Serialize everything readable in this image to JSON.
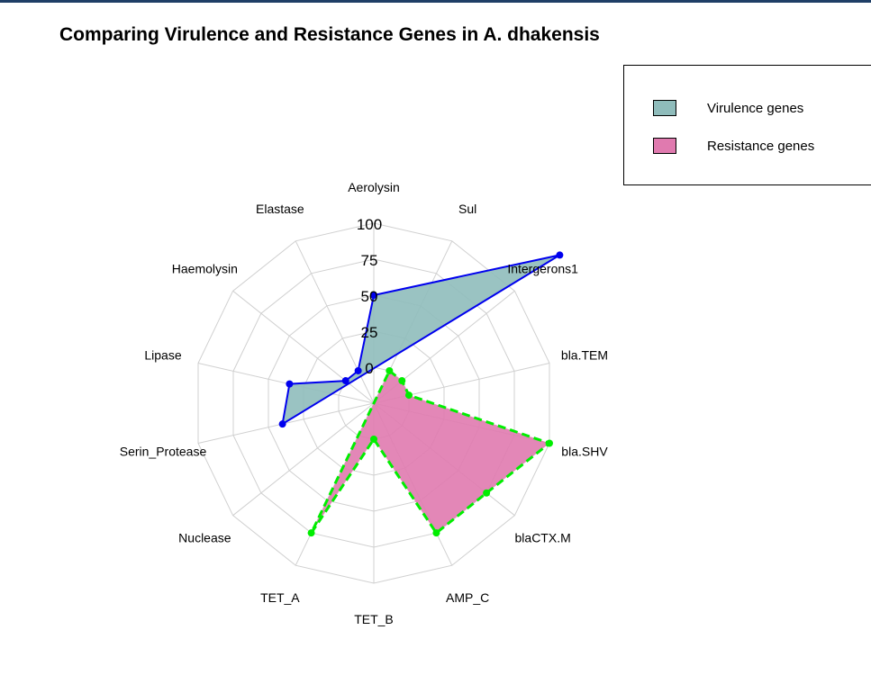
{
  "chart_data": {
    "type": "radar",
    "title": "Comparing Virulence and Resistance Genes in A. dhakensis",
    "axes": [
      "Aerolysin",
      "Sul",
      "Intergerons1",
      "bla.TEM",
      "bla.SHV",
      "blaCTX.M",
      "AMP_C",
      "TET_B",
      "TET_A",
      "Nuclease",
      "Serin_Protease",
      "Lipase",
      "Haemolysin",
      "Elastase"
    ],
    "radial_ticks": [
      "0",
      "25",
      "50",
      "75",
      "100"
    ],
    "rlim": [
      -25,
      100
    ],
    "grid": true,
    "legend_position": "top-right",
    "series": [
      {
        "name": "Virulence genes",
        "fill": "#8fbcbb",
        "stroke": "#0000ee",
        "line_style": "solid",
        "values": [
          50,
          null,
          null,
          null,
          null,
          null,
          null,
          null,
          null,
          -190,
          40,
          35,
          0,
          0
        ]
      },
      {
        "name": "Resistance genes",
        "fill": "#e07aaf",
        "stroke": "#00ee00",
        "line_style": "dashed",
        "values": [
          null,
          0,
          0,
          0,
          100,
          75,
          75,
          0,
          75,
          null,
          null,
          null,
          null,
          null
        ]
      }
    ]
  },
  "legend": {
    "items": [
      {
        "label": "Virulence genes",
        "color": "#8fbcbb"
      },
      {
        "label": "Resistance genes",
        "color": "#e07aaf"
      }
    ]
  }
}
